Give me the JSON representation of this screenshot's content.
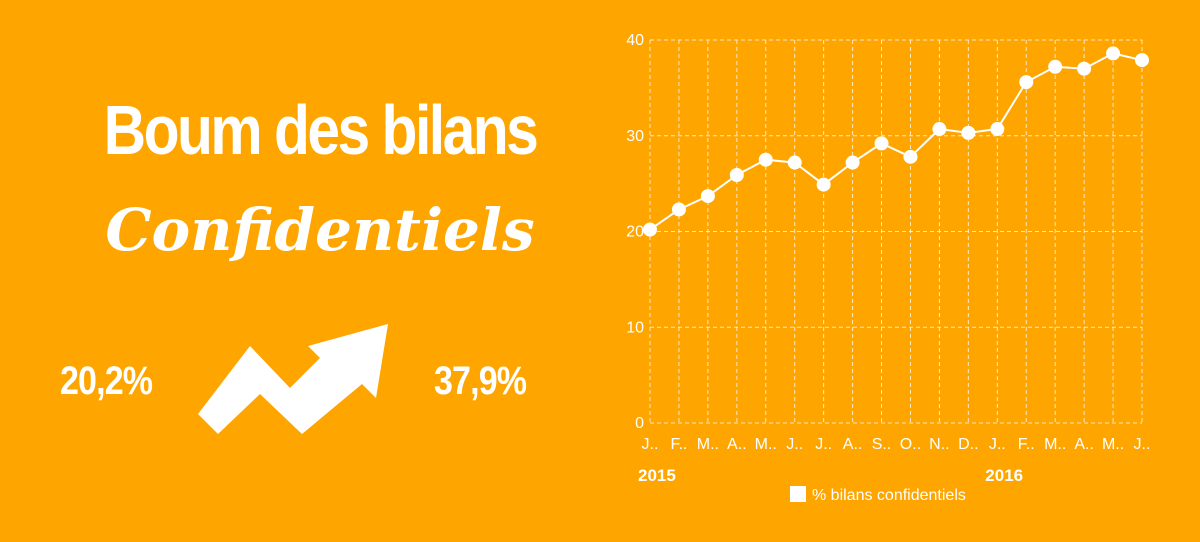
{
  "headline": {
    "title": "Boum des bilans",
    "subtitle": "Confidentiels",
    "start_value": "20,2%",
    "end_value": "37,9%",
    "arrow_icon": "trend-up-arrow-icon"
  },
  "colors": {
    "background": "#FFA500",
    "foreground": "#ffffff"
  },
  "chart_data": {
    "type": "line",
    "title": "",
    "xlabel": "",
    "ylabel": "",
    "ylim": [
      0,
      40
    ],
    "yticks": [
      "0",
      "10",
      "20",
      "30",
      "40"
    ],
    "grid": true,
    "legend_position": "bottom",
    "x_tick_labels": [
      "J..",
      "F..",
      "M..",
      "A..",
      "M..",
      "J..",
      "J..",
      "A..",
      "S..",
      "O..",
      "N..",
      "D..",
      "J..",
      "F..",
      "M..",
      "A..",
      "M..",
      "J.."
    ],
    "year_labels": [
      "2015",
      "2016"
    ],
    "series": [
      {
        "name": "% bilans confidentiels",
        "color": "#ffffff",
        "values": [
          20.2,
          22.3,
          23.7,
          25.9,
          27.5,
          27.2,
          24.9,
          27.2,
          29.2,
          27.8,
          30.7,
          30.3,
          30.7,
          35.6,
          37.2,
          37.0,
          38.6,
          37.9
        ]
      }
    ]
  }
}
